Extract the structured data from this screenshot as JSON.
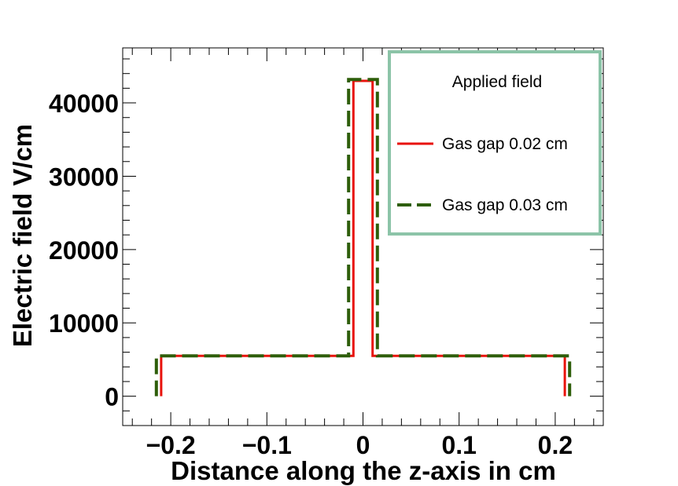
{
  "chart_data": {
    "type": "line",
    "title": "",
    "xlabel": "Distance along the z-axis in cm",
    "ylabel": "Electric field V/cm",
    "xlim": [
      -0.25,
      0.25
    ],
    "ylim": [
      -4000,
      47500
    ],
    "x_ticks": [
      -0.2,
      -0.1,
      0,
      0.1,
      0.2
    ],
    "x_tick_labels": [
      "−0.2",
      "−0.1",
      "0",
      "0.1",
      "0.2"
    ],
    "y_ticks": [
      0,
      10000,
      20000,
      30000,
      40000
    ],
    "y_tick_labels": [
      "0",
      "10000",
      "20000",
      "30000",
      "40000"
    ],
    "grid": false,
    "legend": {
      "title": "Applied field",
      "placement": "top-right",
      "border_color": "#8cc4a8"
    },
    "series": [
      {
        "name": "Gas gap 0.02 cm",
        "color": "#e8120c",
        "dash": "solid",
        "x": [
          -0.21,
          -0.21,
          -0.01,
          -0.01,
          0.01,
          0.01,
          0.21,
          0.21
        ],
        "y": [
          0,
          5500,
          5500,
          43000,
          43000,
          5500,
          5500,
          0
        ]
      },
      {
        "name": "Gas gap 0.03 cm",
        "color": "#2e5e0a",
        "dash": "dashed",
        "x": [
          -0.215,
          -0.215,
          -0.015,
          -0.015,
          0.015,
          0.015,
          0.215,
          0.215
        ],
        "y": [
          0,
          5500,
          5500,
          43200,
          43200,
          5500,
          5500,
          0
        ]
      }
    ]
  }
}
